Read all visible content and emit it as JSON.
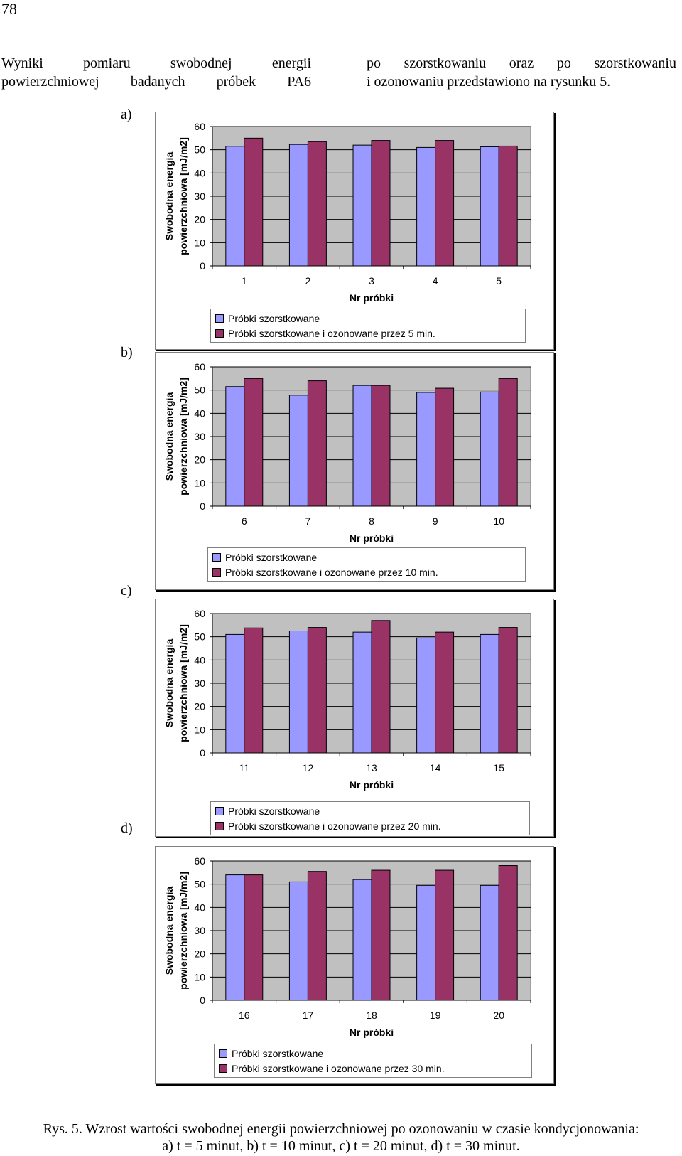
{
  "page_number": "78",
  "intro": {
    "left_line1": "Wyniki pomiaru swobodnej energii",
    "left_line2": "powierzchniowej badanych próbek PA6",
    "right_line1": "po szorstkowaniu oraz po szorstkowaniu",
    "right_line2": "i ozonowaniu przedstawiono na rysunku 5."
  },
  "caption": {
    "line1": "Rys. 5. Wzrost wartości swobodnej energii powierzchniowej po ozonowaniu w czasie kondycjonowania:",
    "line2": "a) t = 5 minut, b) t = 10 minut, c) t = 20 minut, d) t = 30 minut."
  },
  "colors": {
    "series1": "#9999ff",
    "series2": "#993366",
    "plot_bg": "#c0c0c0",
    "grid": "#000000"
  },
  "chart_data": [
    {
      "panel": "a)",
      "type": "bar",
      "categories": [
        "1",
        "2",
        "3",
        "4",
        "5"
      ],
      "series": [
        {
          "name": "Próbki szorstkowane",
          "values": [
            51.5,
            52.3,
            52.0,
            51.0,
            51.3
          ]
        },
        {
          "name": "Próbki szorstkowane i ozonowane przez 5 min.",
          "values": [
            55.0,
            53.5,
            54.0,
            54.0,
            51.6
          ]
        }
      ],
      "xlabel": "Nr próbki",
      "ylabel_line1": "Swobodna energia",
      "ylabel_line2": "powierzchniowa [mJ/m2]",
      "ylim": [
        0,
        60
      ],
      "yticks": [
        "0",
        "10",
        "20",
        "30",
        "40",
        "50",
        "60"
      ]
    },
    {
      "panel": "b)",
      "type": "bar",
      "categories": [
        "6",
        "7",
        "8",
        "9",
        "10"
      ],
      "series": [
        {
          "name": "Próbki szorstkowane",
          "values": [
            51.5,
            47.8,
            52.0,
            49.0,
            49.2
          ]
        },
        {
          "name": "Próbki szorstkowane i ozonowane przez 10 min.",
          "values": [
            55.0,
            54.0,
            52.0,
            50.8,
            55.0
          ]
        }
      ],
      "xlabel": "Nr próbki",
      "ylabel_line1": "Swobodna energia",
      "ylabel_line2": "powierzchniowa [mJ/m2]",
      "ylim": [
        0,
        60
      ],
      "yticks": [
        "0",
        "10",
        "20",
        "30",
        "40",
        "50",
        "60"
      ]
    },
    {
      "panel": "c)",
      "type": "bar",
      "categories": [
        "11",
        "12",
        "13",
        "14",
        "15"
      ],
      "series": [
        {
          "name": "Próbki szorstkowane",
          "values": [
            51.0,
            52.5,
            52.0,
            49.5,
            51.0
          ]
        },
        {
          "name": "Próbki szorstkowane i ozonowane przez 20 min.",
          "values": [
            53.8,
            54.0,
            57.0,
            52.0,
            54.0
          ]
        }
      ],
      "xlabel": "Nr próbki",
      "ylabel_line1": "Swobodna energia",
      "ylabel_line2": "powierzchniowa [mJ/m2]",
      "ylim": [
        0,
        60
      ],
      "yticks": [
        "0",
        "10",
        "20",
        "30",
        "40",
        "50",
        "60"
      ]
    },
    {
      "panel": "d)",
      "type": "bar",
      "categories": [
        "16",
        "17",
        "18",
        "19",
        "20"
      ],
      "series": [
        {
          "name": "Próbki szorstkowane",
          "values": [
            54.0,
            51.0,
            52.0,
            49.5,
            49.5
          ]
        },
        {
          "name": "Próbki szorstkowane i ozonowane przez 30 min.",
          "values": [
            54.0,
            55.5,
            56.0,
            56.0,
            58.0
          ]
        }
      ],
      "xlabel": "Nr próbki",
      "ylabel_line1": "Swobodna energia",
      "ylabel_line2": "powierzchniowa [mJ/m2]",
      "ylim": [
        0,
        60
      ],
      "yticks": [
        "0",
        "10",
        "20",
        "30",
        "40",
        "50",
        "60"
      ]
    }
  ]
}
